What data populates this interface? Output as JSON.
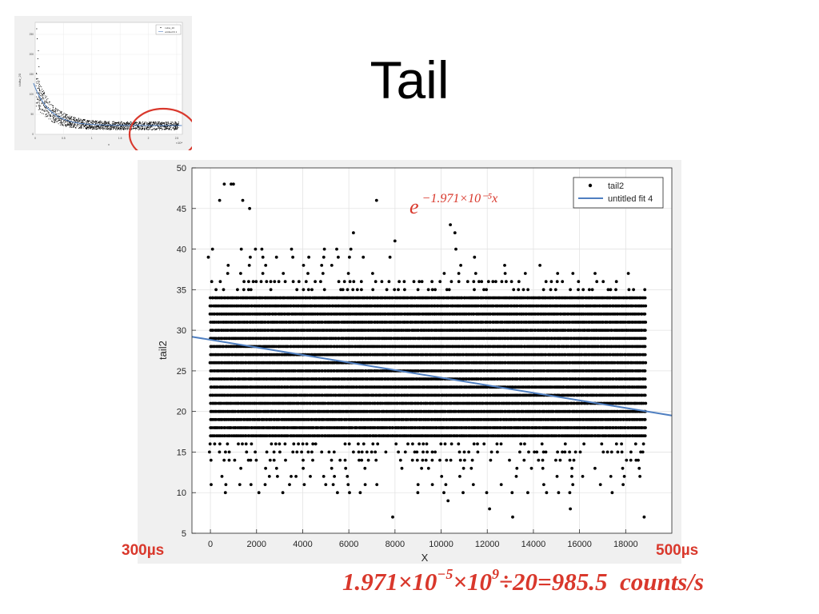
{
  "slide": {
    "title": "Tail",
    "left_label": "300µs",
    "right_label": "500µs",
    "formula": {
      "part1": "1.971×10",
      "exp1": "−5",
      "part2": "×10",
      "exp2": "9",
      "part3": "÷20=985.5",
      "part4": "counts/s"
    },
    "annotation_color": "#d9382c"
  },
  "thumbnail": {
    "type": "scatter",
    "ylabel": "t.tdiw_20",
    "xlabel": "x",
    "legend": [
      "t.tdiw_20",
      "untitled fit 1"
    ],
    "x_exponent_label": "×10⁴",
    "xlim": [
      0,
      2.6
    ],
    "ylim": [
      0,
      280
    ],
    "xticks": [
      "0",
      "0.5",
      "1",
      "1.5",
      "2",
      "2.5"
    ],
    "yticks": [
      "250",
      "200",
      "150",
      "100",
      "50",
      "0"
    ],
    "highlight": "circle around tail region"
  },
  "chart_data": {
    "type": "scatter",
    "xlabel": "X",
    "ylabel": "tail2",
    "xlim": [
      -800,
      20000
    ],
    "ylim": [
      5,
      50
    ],
    "xticks": [
      0,
      2000,
      4000,
      6000,
      8000,
      10000,
      12000,
      14000,
      16000,
      18000
    ],
    "yticks": [
      5,
      10,
      15,
      20,
      25,
      30,
      35,
      40,
      45,
      50
    ],
    "grid": true,
    "legend_position": "top-right",
    "series": [
      {
        "name": "tail2",
        "kind": "points",
        "color": "#000000",
        "band_x_range": [
          0,
          18900
        ],
        "dense_y_range": [
          17,
          34
        ],
        "sample_outliers": [
          [
            600,
            48
          ],
          [
            900,
            48
          ],
          [
            1000,
            48
          ],
          [
            400,
            46
          ],
          [
            1400,
            46
          ],
          [
            1700,
            45
          ],
          [
            7200,
            46
          ],
          [
            10400,
            43
          ],
          [
            10600,
            42
          ],
          [
            8000,
            41
          ],
          [
            6200,
            42
          ],
          [
            2100,
            10
          ],
          [
            7900,
            7
          ],
          [
            13100,
            7
          ],
          [
            18800,
            7
          ],
          [
            500,
            12
          ],
          [
            3500,
            12
          ],
          [
            12100,
            8
          ],
          [
            15600,
            8
          ],
          [
            10300,
            9
          ],
          [
            5000,
            11
          ],
          [
            9000,
            11
          ]
        ]
      },
      {
        "name": "untitled fit 4",
        "kind": "line",
        "color": "#4f7fc1",
        "points": [
          [
            -800,
            29.2
          ],
          [
            20000,
            19.5
          ]
        ]
      }
    ],
    "annotation": {
      "base": "e",
      "exponent": "−1.971×10⁻⁵x",
      "color": "#d9382c"
    }
  }
}
